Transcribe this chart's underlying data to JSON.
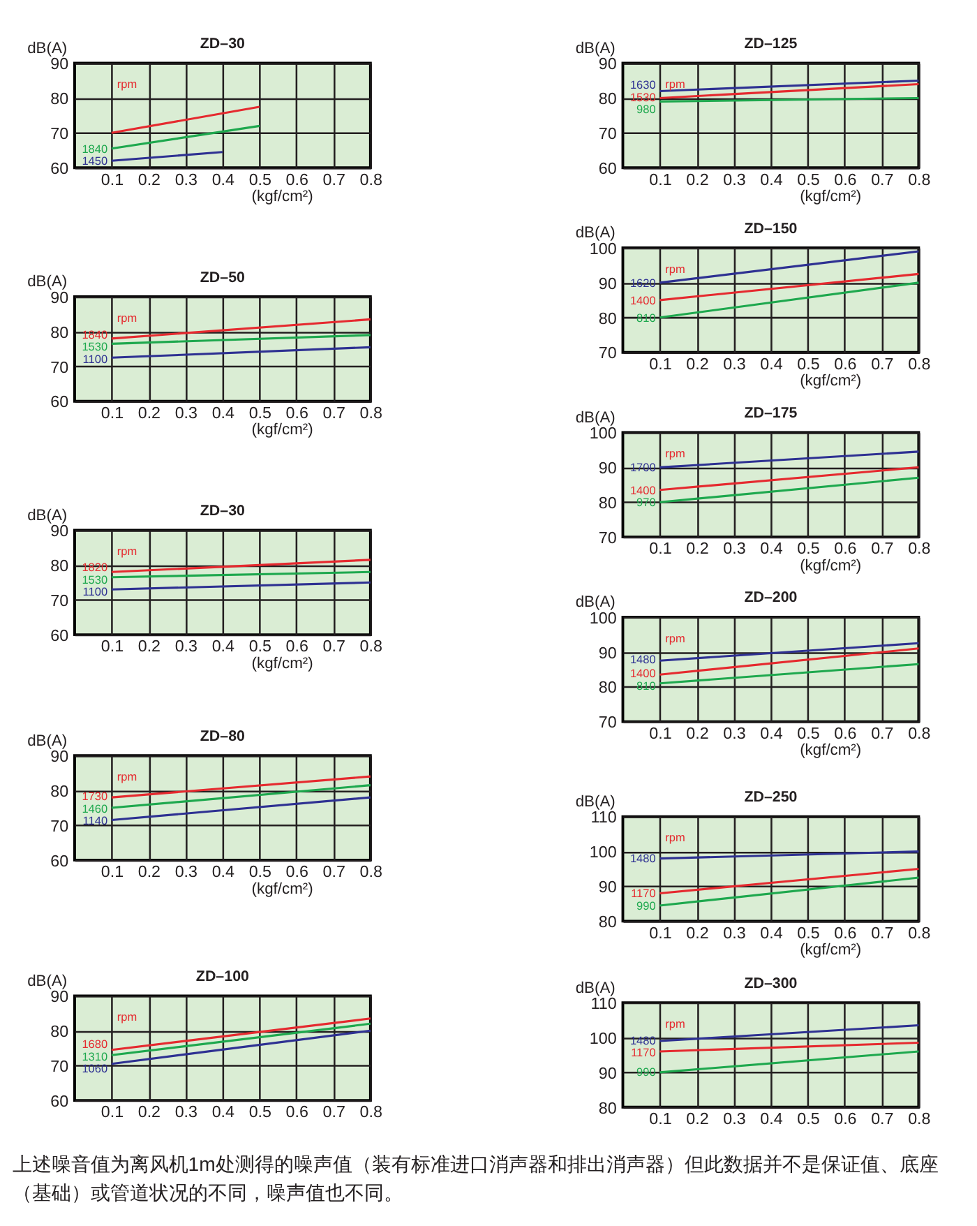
{
  "chart_data": [
    {
      "type": "line",
      "title": "ZD–30",
      "xlabel": "(kgf/cm²)",
      "ylabel": "dB(A)",
      "xlim": [
        0,
        0.8
      ],
      "ylim": [
        60,
        90
      ],
      "xticks": [
        0.1,
        0.2,
        0.3,
        0.4,
        0.5,
        0.6,
        0.7,
        0.8
      ],
      "yticks": [
        60,
        70,
        80,
        90
      ],
      "grid": true,
      "annotations": [
        "rpm"
      ],
      "series": [
        {
          "color": "#e52a2f",
          "x": [
            0.1,
            0.5
          ],
          "values": [
            70,
            77.5
          ]
        },
        {
          "name": "1840",
          "color": "#1ea84e",
          "x": [
            0.1,
            0.5
          ],
          "values": [
            65.5,
            72
          ]
        },
        {
          "name": "1450",
          "color": "#2e3192",
          "x": [
            0.1,
            0.4
          ],
          "values": [
            62,
            64.5
          ]
        }
      ]
    },
    {
      "type": "line",
      "title": "ZD–50",
      "xlabel": "(kgf/cm²)",
      "ylabel": "dB(A)",
      "xlim": [
        0,
        0.8
      ],
      "ylim": [
        60,
        90
      ],
      "xticks": [
        0.1,
        0.2,
        0.3,
        0.4,
        0.5,
        0.6,
        0.7,
        0.8
      ],
      "yticks": [
        60,
        70,
        80,
        90
      ],
      "grid": true,
      "annotations": [
        "rpm"
      ],
      "series": [
        {
          "name": "1840",
          "color": "#e52a2f",
          "x": [
            0.1,
            0.8
          ],
          "values": [
            78,
            83.5
          ]
        },
        {
          "name": "1530",
          "color": "#1ea84e",
          "x": [
            0.1,
            0.8
          ],
          "values": [
            76.5,
            79
          ]
        },
        {
          "name": "1100",
          "color": "#2e3192",
          "x": [
            0.1,
            0.8
          ],
          "values": [
            72.5,
            75.5
          ]
        }
      ]
    },
    {
      "type": "line",
      "title": "ZD–30",
      "xlabel": "(kgf/cm²)",
      "ylabel": "dB(A)",
      "xlim": [
        0,
        0.8
      ],
      "ylim": [
        60,
        90
      ],
      "xticks": [
        0.1,
        0.2,
        0.3,
        0.4,
        0.5,
        0.6,
        0.7,
        0.8
      ],
      "yticks": [
        60,
        70,
        80,
        90
      ],
      "grid": true,
      "annotations": [
        "rpm"
      ],
      "series": [
        {
          "name": "1820",
          "color": "#e52a2f",
          "x": [
            0.1,
            0.8
          ],
          "values": [
            78,
            81.5
          ]
        },
        {
          "name": "1530",
          "color": "#1ea84e",
          "x": [
            0.1,
            0.8
          ],
          "values": [
            76.5,
            78
          ]
        },
        {
          "name": "1100",
          "color": "#2e3192",
          "x": [
            0.1,
            0.8
          ],
          "values": [
            73,
            75
          ]
        }
      ]
    },
    {
      "type": "line",
      "title": "ZD–80",
      "xlabel": "(kgf/cm²)",
      "ylabel": "dB(A)",
      "xlim": [
        0,
        0.8
      ],
      "ylim": [
        60,
        90
      ],
      "xticks": [
        0.1,
        0.2,
        0.3,
        0.4,
        0.5,
        0.6,
        0.7,
        0.8
      ],
      "yticks": [
        60,
        70,
        80,
        90
      ],
      "grid": true,
      "annotations": [
        "rpm"
      ],
      "series": [
        {
          "name": "1730",
          "color": "#e52a2f",
          "x": [
            0.1,
            0.8
          ],
          "values": [
            78,
            84
          ]
        },
        {
          "name": "1460",
          "color": "#1ea84e",
          "x": [
            0.1,
            0.8
          ],
          "values": [
            75,
            81.5
          ]
        },
        {
          "name": "1140",
          "color": "#2e3192",
          "x": [
            0.1,
            0.8
          ],
          "values": [
            71.5,
            78
          ]
        }
      ]
    },
    {
      "type": "line",
      "title": "ZD–100",
      "ylabel": "dB(A)",
      "xlim": [
        0,
        0.8
      ],
      "ylim": [
        60,
        90
      ],
      "xticks": [
        0.1,
        0.2,
        0.3,
        0.4,
        0.5,
        0.6,
        0.7,
        0.8
      ],
      "yticks": [
        60,
        70,
        80,
        90
      ],
      "grid": true,
      "annotations": [
        "rpm"
      ],
      "series": [
        {
          "name": "1680",
          "color": "#e52a2f",
          "x": [
            0.1,
            0.8
          ],
          "values": [
            74.5,
            83.5
          ]
        },
        {
          "name": "1310",
          "color": "#1ea84e",
          "x": [
            0.1,
            0.8
          ],
          "values": [
            73,
            82
          ]
        },
        {
          "name": "1060",
          "color": "#2e3192",
          "x": [
            0.1,
            0.8
          ],
          "values": [
            70.5,
            80
          ]
        }
      ]
    },
    {
      "type": "line",
      "title": "ZD–125",
      "xlabel": "(kgf/cm²)",
      "ylabel": "dB(A)",
      "xlim": [
        0,
        0.8
      ],
      "ylim": [
        60,
        90
      ],
      "xticks": [
        0.1,
        0.2,
        0.3,
        0.4,
        0.5,
        0.6,
        0.7,
        0.8
      ],
      "yticks": [
        60,
        70,
        80,
        90
      ],
      "grid": true,
      "annotations": [
        "rpm"
      ],
      "series": [
        {
          "name": "1530",
          "color": "#e52a2f",
          "x": [
            0.1,
            0.8
          ],
          "values": [
            80,
            84
          ]
        },
        {
          "name": "1630",
          "color": "#2e3192",
          "x": [
            0.1,
            0.8
          ],
          "values": [
            82,
            85
          ]
        },
        {
          "name": "980",
          "color": "#1ea84e",
          "x": [
            0.1,
            0.8
          ],
          "values": [
            79,
            80
          ]
        }
      ]
    },
    {
      "type": "line",
      "title": "ZD–150",
      "xlabel": "(kgf/cm²)",
      "ylabel": "dB(A)",
      "xlim": [
        0,
        0.8
      ],
      "ylim": [
        70,
        100
      ],
      "xticks": [
        0.1,
        0.2,
        0.3,
        0.4,
        0.5,
        0.6,
        0.7,
        0.8
      ],
      "yticks": [
        70,
        80,
        90,
        100
      ],
      "grid": true,
      "annotations": [
        "rpm"
      ],
      "series": [
        {
          "name": "1400",
          "color": "#e52a2f",
          "x": [
            0.1,
            0.8
          ],
          "values": [
            85,
            92.5
          ]
        },
        {
          "name": "1620",
          "color": "#2e3192",
          "x": [
            0.1,
            0.8
          ],
          "values": [
            90,
            99
          ]
        },
        {
          "name": "810",
          "color": "#1ea84e",
          "x": [
            0.1,
            0.8
          ],
          "values": [
            80,
            90
          ]
        }
      ]
    },
    {
      "type": "line",
      "title": "ZD–175",
      "xlabel": "(kgf/cm²)",
      "ylabel": "dB(A)",
      "xlim": [
        0,
        0.8
      ],
      "ylim": [
        70,
        100
      ],
      "xticks": [
        0.1,
        0.2,
        0.3,
        0.4,
        0.5,
        0.6,
        0.7,
        0.8
      ],
      "yticks": [
        70,
        80,
        90,
        100
      ],
      "grid": true,
      "annotations": [
        "rpm"
      ],
      "series": [
        {
          "name": "1400",
          "color": "#e52a2f",
          "x": [
            0.1,
            0.8
          ],
          "values": [
            83.5,
            90
          ]
        },
        {
          "name": "1700",
          "color": "#2e3192",
          "x": [
            0.1,
            0.8
          ],
          "values": [
            90,
            94.5
          ]
        },
        {
          "name": "970",
          "color": "#1ea84e",
          "x": [
            0.1,
            0.8
          ],
          "values": [
            80,
            87
          ]
        }
      ]
    },
    {
      "type": "line",
      "title": "ZD–200",
      "xlabel": "(kgf/cm²)",
      "ylabel": "dB(A)",
      "xlim": [
        0,
        0.8
      ],
      "ylim": [
        70,
        100
      ],
      "xticks": [
        0.1,
        0.2,
        0.3,
        0.4,
        0.5,
        0.6,
        0.7,
        0.8
      ],
      "yticks": [
        70,
        80,
        90,
        100
      ],
      "grid": true,
      "annotations": [
        "rpm"
      ],
      "series": [
        {
          "name": "1400",
          "color": "#e52a2f",
          "x": [
            0.1,
            0.8
          ],
          "values": [
            83.5,
            91
          ]
        },
        {
          "name": "1480",
          "color": "#2e3192",
          "x": [
            0.1,
            0.8
          ],
          "values": [
            87.5,
            92.5
          ]
        },
        {
          "name": "810",
          "color": "#1ea84e",
          "x": [
            0.1,
            0.8
          ],
          "values": [
            81,
            86.5
          ]
        }
      ]
    },
    {
      "type": "line",
      "title": "ZD–250",
      "xlabel": "(kgf/cm²)",
      "ylabel": "dB(A)",
      "xlim": [
        0,
        0.8
      ],
      "ylim": [
        80,
        110
      ],
      "xticks": [
        0.1,
        0.2,
        0.3,
        0.4,
        0.5,
        0.6,
        0.7,
        0.8
      ],
      "yticks": [
        80,
        90,
        100,
        110
      ],
      "grid": true,
      "annotations": [
        "rpm"
      ],
      "series": [
        {
          "name": "1170",
          "color": "#e52a2f",
          "x": [
            0.1,
            0.8
          ],
          "values": [
            88,
            95
          ]
        },
        {
          "name": "1480",
          "color": "#2e3192",
          "x": [
            0.1,
            0.8
          ],
          "values": [
            98,
            100
          ]
        },
        {
          "name": "990",
          "color": "#1ea84e",
          "x": [
            0.1,
            0.8
          ],
          "values": [
            84.5,
            92.5
          ]
        }
      ]
    },
    {
      "type": "line",
      "title": "ZD–300",
      "ylabel": "dB(A)",
      "xlim": [
        0,
        0.8
      ],
      "ylim": [
        80,
        110
      ],
      "xticks": [
        0.1,
        0.2,
        0.3,
        0.4,
        0.5,
        0.6,
        0.7,
        0.8
      ],
      "yticks": [
        80,
        90,
        100,
        110
      ],
      "grid": true,
      "annotations": [
        "rpm"
      ],
      "series": [
        {
          "name": "1170",
          "color": "#e52a2f",
          "x": [
            0.1,
            0.8
          ],
          "values": [
            96,
            98.5
          ]
        },
        {
          "name": "1480",
          "color": "#2e3192",
          "x": [
            0.1,
            0.8
          ],
          "values": [
            99,
            103.5
          ]
        },
        {
          "name": "990",
          "color": "#1ea84e",
          "x": [
            0.1,
            0.8
          ],
          "values": [
            90,
            96
          ]
        }
      ]
    },
    {
      "type": "other",
      "annotations": [
        "上述噪音值为离风机1m处测得的噪声值（装有标准进口消声器和排出消声器）但此数据并不是保证值、底座（基础）或管道状况的不同，噪声值也不同。"
      ]
    }
  ]
}
